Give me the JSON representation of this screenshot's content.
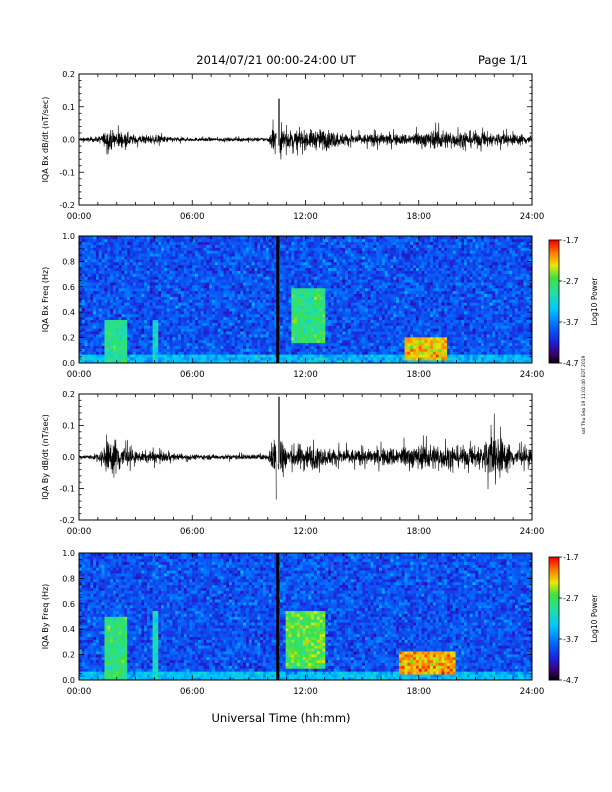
{
  "header": {
    "title": "2014/07/21  00:00-24:00 UT",
    "page": "Page 1/1"
  },
  "footer": {
    "xlabel": "Universal Time (hh:mm)",
    "side_note": "sat Thu Sep 19 11:02:40 EDT 2019"
  },
  "colorbar": {
    "label": "Log10 Power",
    "ticks": [
      "-1.7",
      "-2.7",
      "-3.7",
      "-4.7"
    ]
  },
  "chart_data": [
    {
      "type": "line",
      "ylabel": "IQA Bx dB/dt (nT/sec)",
      "xlim": [
        0,
        24
      ],
      "ylim": [
        -0.2,
        0.2
      ],
      "xticks": [
        "00:00",
        "06:00",
        "12:00",
        "18:00",
        "24:00"
      ],
      "yticks": [
        "0.2",
        "0.1",
        "0.0",
        "-0.1",
        "-0.2"
      ],
      "data_gap": [
        10.45,
        10.55
      ],
      "envelope": {
        "x_hours": [
          0,
          1,
          1.5,
          2,
          2.5,
          3,
          4,
          5,
          6,
          8,
          10,
          10.6,
          11,
          12,
          13,
          14,
          15,
          16,
          17,
          18,
          19,
          20,
          21,
          22,
          23,
          24
        ],
        "amplitude": [
          0.01,
          0.015,
          0.05,
          0.055,
          0.04,
          0.025,
          0.025,
          0.015,
          0.01,
          0.01,
          0.012,
          0.13,
          0.05,
          0.05,
          0.06,
          0.035,
          0.03,
          0.035,
          0.03,
          0.04,
          0.055,
          0.045,
          0.045,
          0.04,
          0.03,
          0.03
        ]
      }
    },
    {
      "type": "heatmap",
      "ylabel": "IQA Bx Freq (Hz)",
      "xlim": [
        0,
        24
      ],
      "ylim": [
        0,
        1.0
      ],
      "zlim": [
        -4.7,
        -1.7
      ],
      "xticks": [
        "00:00",
        "06:00",
        "12:00",
        "18:00",
        "24:00"
      ],
      "yticks": [
        "1.0",
        "0.8",
        "0.6",
        "0.4",
        "0.2",
        "0.0"
      ],
      "data_gap": [
        10.45,
        10.55
      ],
      "features": [
        {
          "x": [
            1.4,
            2.6
          ],
          "y": [
            0.0,
            0.35
          ],
          "level": -2.9
        },
        {
          "x": [
            3.9,
            4.2
          ],
          "y": [
            0.0,
            0.35
          ],
          "level": -3.2
        },
        {
          "x": [
            11.2,
            13.0
          ],
          "y": [
            0.15,
            0.6
          ],
          "level": -2.8
        },
        {
          "x": [
            17.2,
            19.5
          ],
          "y": [
            0.02,
            0.2
          ],
          "level": -2.2
        }
      ]
    },
    {
      "type": "line",
      "ylabel": "IQA By dB/dt (nT/sec)",
      "xlim": [
        0,
        24
      ],
      "ylim": [
        -0.2,
        0.2
      ],
      "xticks": [
        "00:00",
        "06:00",
        "12:00",
        "18:00",
        "24:00"
      ],
      "yticks": [
        "0.2",
        "0.1",
        "0.0",
        "-0.1",
        "-0.2"
      ],
      "data_gap": [
        10.45,
        10.55
      ],
      "envelope": {
        "x_hours": [
          0,
          1,
          1.5,
          2,
          2.5,
          3,
          4,
          5,
          6,
          8,
          10,
          10.6,
          11,
          12,
          13,
          14,
          15,
          16,
          17,
          18,
          19,
          20,
          21,
          22,
          23,
          24
        ],
        "amplitude": [
          0.01,
          0.02,
          0.09,
          0.11,
          0.06,
          0.03,
          0.035,
          0.02,
          0.015,
          0.015,
          0.015,
          0.2,
          0.06,
          0.08,
          0.05,
          0.05,
          0.04,
          0.05,
          0.06,
          0.07,
          0.075,
          0.06,
          0.06,
          0.14,
          0.06,
          0.04
        ]
      }
    },
    {
      "type": "heatmap",
      "ylabel": "IQA By Freq (Hz)",
      "xlim": [
        0,
        24
      ],
      "ylim": [
        0,
        1.0
      ],
      "zlim": [
        -4.7,
        -1.7
      ],
      "xticks": [
        "00:00",
        "06:00",
        "12:00",
        "18:00",
        "24:00"
      ],
      "yticks": [
        "1.0",
        "0.8",
        "0.6",
        "0.4",
        "0.2",
        "0.0"
      ],
      "data_gap": [
        10.45,
        10.55
      ],
      "features": [
        {
          "x": [
            1.4,
            2.6
          ],
          "y": [
            0.0,
            0.5
          ],
          "level": -2.8
        },
        {
          "x": [
            3.9,
            4.2
          ],
          "y": [
            0.0,
            0.55
          ],
          "level": -3.1
        },
        {
          "x": [
            11.0,
            13.0
          ],
          "y": [
            0.1,
            0.55
          ],
          "level": -2.6
        },
        {
          "x": [
            17.0,
            20.0
          ],
          "y": [
            0.05,
            0.22
          ],
          "level": -2.1
        }
      ]
    }
  ]
}
